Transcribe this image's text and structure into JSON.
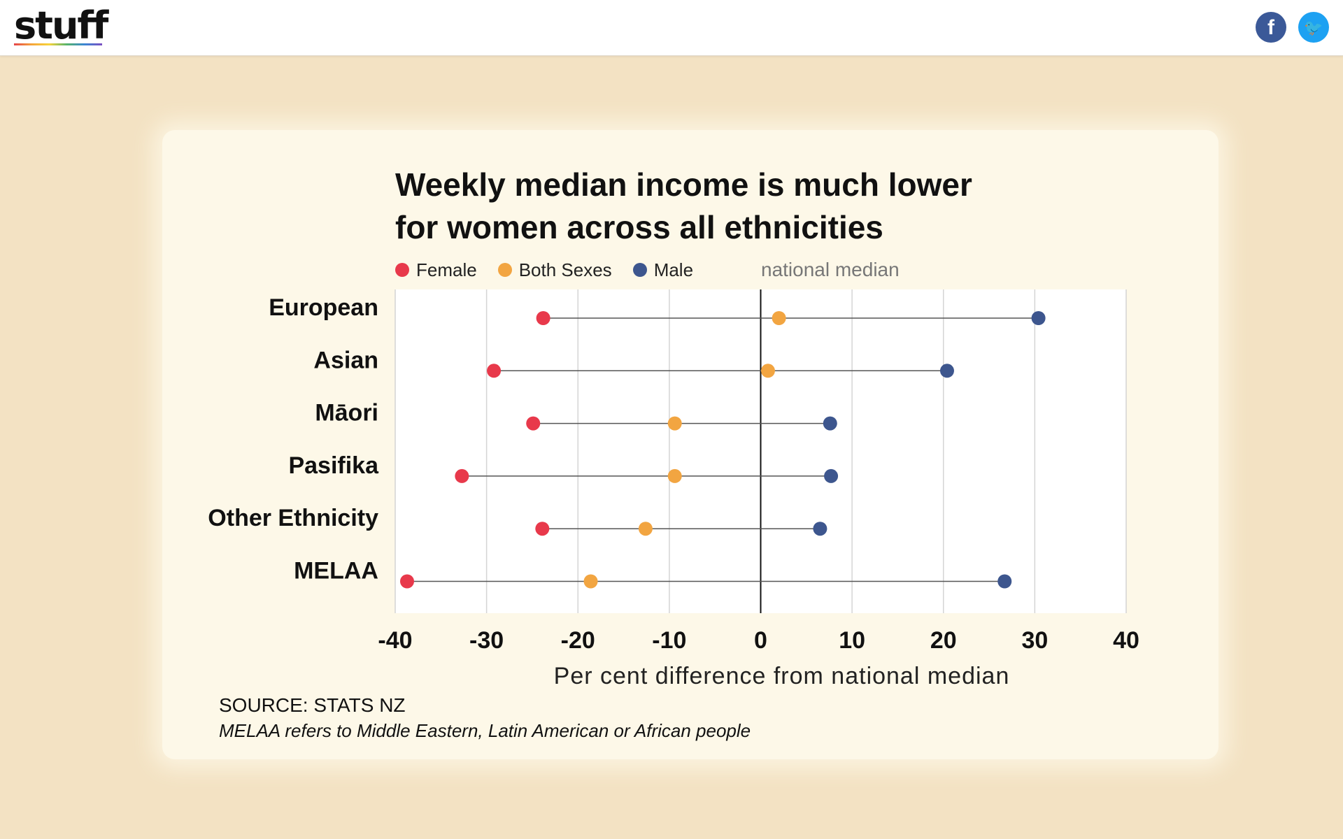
{
  "header": {
    "logo_text": "stuff",
    "facebook_icon_glyph": "f",
    "twitter_icon_glyph": "🐦"
  },
  "chart_data": {
    "type": "dot-range",
    "title": "Weekly median income is much lower for women across all ethnicities",
    "title_lines": [
      "Weekly median income is much lower",
      "for women across all ethnicities"
    ],
    "legend": [
      "Female",
      "Both Sexes",
      "Male"
    ],
    "median_label": "national median",
    "xlabel": "Per cent difference from national median",
    "xlim": [
      -40,
      40
    ],
    "xticks": [
      -40,
      -30,
      -20,
      -10,
      0,
      10,
      20,
      30,
      40
    ],
    "categories": [
      "European",
      "Asian",
      "Māori",
      "Pasifika",
      "Other Ethnicity",
      "MELAA"
    ],
    "series": [
      {
        "name": "Female",
        "color": "#e8394b",
        "values": [
          -23.8,
          -29.2,
          -24.9,
          -32.7,
          -23.9,
          -38.7
        ]
      },
      {
        "name": "Both Sexes",
        "color": "#f2a541",
        "values": [
          2.0,
          0.8,
          -9.4,
          -9.4,
          -12.6,
          -18.6
        ]
      },
      {
        "name": "Male",
        "color": "#3d568e",
        "values": [
          30.4,
          20.4,
          7.6,
          7.7,
          6.5,
          26.7
        ]
      }
    ],
    "grid": true
  },
  "footer": {
    "source": "SOURCE: STATS NZ",
    "note": "MELAA refers to Middle Eastern, Latin American or African people"
  }
}
